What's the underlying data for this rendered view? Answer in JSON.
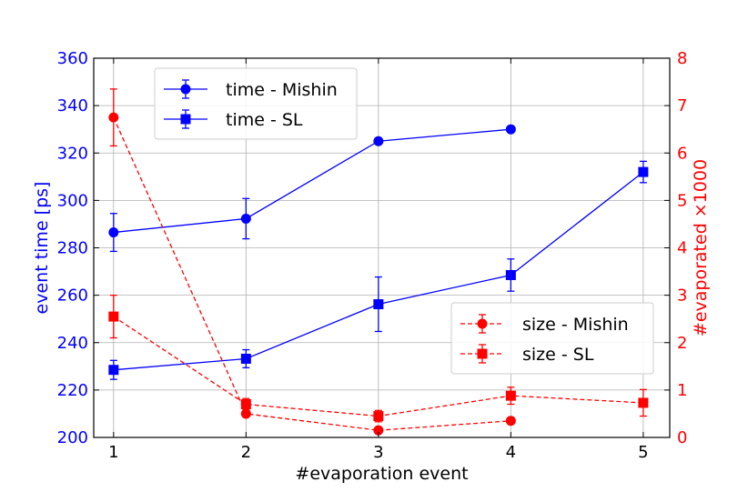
{
  "chart_data": {
    "type": "line",
    "title": "",
    "xlabel": "#evaporation event",
    "ylabel_left": "event time [ps]",
    "ylabel_right": "#evaporated ×1000",
    "xlim": [
      0.85,
      5.2
    ],
    "ylim_left": [
      200,
      360
    ],
    "ylim_right": [
      0,
      8
    ],
    "xticks": [
      1,
      2,
      3,
      4,
      5
    ],
    "yticks_left": [
      200,
      220,
      240,
      260,
      280,
      300,
      320,
      340,
      360
    ],
    "yticks_right": [
      0,
      1,
      2,
      3,
      4,
      5,
      6,
      7,
      8
    ],
    "grid": true,
    "colors": {
      "left_axis": "#0000ff",
      "right_axis": "#ff0000"
    },
    "legends": [
      {
        "placement": "upper-left",
        "entries": [
          "time - Mishin",
          "time - SL"
        ]
      },
      {
        "placement": "lower-right",
        "entries": [
          "size - Mishin",
          "size - SL"
        ]
      }
    ],
    "series": [
      {
        "name": "time - Mishin",
        "axis": "left",
        "color": "#0000ff",
        "linestyle": "solid",
        "marker": "circle",
        "x": [
          1,
          2,
          3,
          4
        ],
        "y": [
          286.5,
          292.3,
          325,
          330
        ],
        "err": [
          8,
          8.5,
          0,
          0
        ]
      },
      {
        "name": "time - SL",
        "axis": "left",
        "color": "#0000ff",
        "linestyle": "solid",
        "marker": "square",
        "x": [
          1,
          2,
          3,
          4,
          5
        ],
        "y": [
          228.5,
          233.2,
          256.2,
          268.5,
          312
        ],
        "err": [
          4,
          3.8,
          11.5,
          6.8,
          4.5
        ]
      },
      {
        "name": "size - Mishin",
        "axis": "right",
        "color": "#ff0000",
        "linestyle": "dashed",
        "marker": "circle",
        "x": [
          1,
          2,
          3,
          4
        ],
        "y": [
          6.75,
          0.5,
          0.15,
          0.35
        ],
        "err": [
          0.6,
          0,
          0,
          0
        ]
      },
      {
        "name": "size - SL",
        "axis": "right",
        "color": "#ff0000",
        "linestyle": "dashed",
        "marker": "square",
        "x": [
          1,
          2,
          3,
          4,
          5
        ],
        "y": [
          2.55,
          0.7,
          0.45,
          0.88,
          0.73
        ],
        "err": [
          0.45,
          0.12,
          0.12,
          0.18,
          0.28
        ]
      }
    ]
  }
}
